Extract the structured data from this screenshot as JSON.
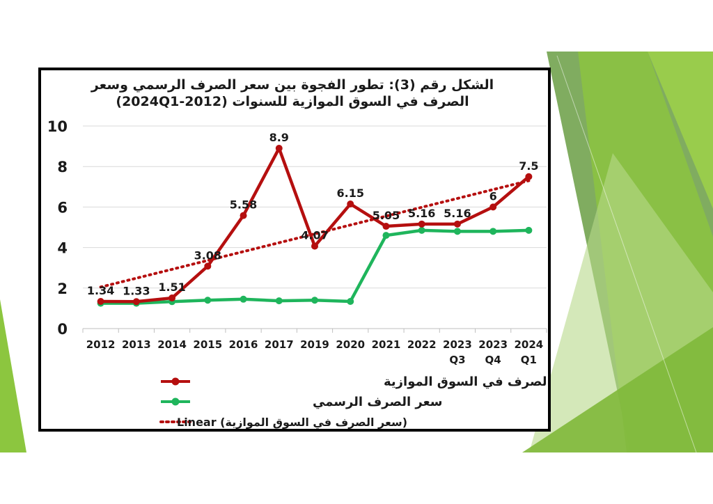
{
  "colors": {
    "parallel": "#b50f0f",
    "official": "#1fb55c",
    "trend": "#b50f0f",
    "green_dark": "#5f9e3a",
    "green_light": "#8cc63f"
  },
  "chart_data": {
    "type": "line",
    "title_line1": "الشكل رقم (3): تطور الفجوة بين سعر الصرف الرسمي وسعر",
    "title_line2": "الصرف في السوق الموازية للسنوات (2012-2024Q1)",
    "categories": [
      [
        "2012"
      ],
      [
        "2013"
      ],
      [
        "2014"
      ],
      [
        "2015"
      ],
      [
        "2016"
      ],
      [
        "2017"
      ],
      [
        "2019"
      ],
      [
        "2020"
      ],
      [
        "2021"
      ],
      [
        "2022"
      ],
      [
        "2023",
        "Q3"
      ],
      [
        "2023",
        "Q4"
      ],
      [
        "2024",
        "Q1"
      ]
    ],
    "ylim": [
      0,
      10
    ],
    "yticks": [
      "0",
      "2",
      "4",
      "6",
      "8",
      "10"
    ],
    "grid": true,
    "legend_position": "bottom",
    "series": [
      {
        "name": "سعر الصرف في السوق الموازية",
        "values": [
          1.34,
          1.33,
          1.51,
          3.08,
          5.58,
          8.9,
          4.07,
          6.15,
          5.05,
          5.16,
          5.16,
          6,
          7.5
        ],
        "labels": [
          "1.34",
          "1.33",
          "1.51",
          "3.08",
          "5.58",
          "8.9",
          "4.07",
          "6.15",
          "5.05",
          "5.16",
          "5.16",
          "6",
          "7.5"
        ]
      },
      {
        "name": "سعر الصرف الرسمي",
        "values": [
          1.25,
          1.25,
          1.33,
          1.4,
          1.45,
          1.37,
          1.4,
          1.34,
          4.6,
          4.85,
          4.8,
          4.8,
          4.85
        ]
      }
    ],
    "trendline": {
      "name": "Linear (سعر الصرف في السوق الموازية)",
      "start": 2.05,
      "end": 7.3
    }
  }
}
